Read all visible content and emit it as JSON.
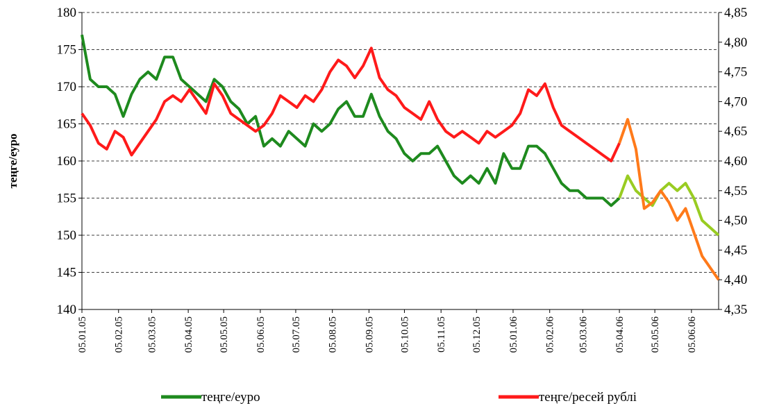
{
  "chart_data": {
    "type": "line",
    "y_label": "теңге/еуро",
    "x": [
      "05.01.05",
      "12.01.05",
      "19.01.05",
      "26.01.05",
      "02.02.05",
      "09.02.05",
      "16.02.05",
      "23.02.05",
      "02.03.05",
      "09.03.05",
      "16.03.05",
      "23.03.05",
      "30.03.05",
      "06.04.05",
      "13.04.05",
      "20.04.05",
      "27.04.05",
      "04.05.05",
      "11.05.05",
      "18.05.05",
      "25.05.05",
      "01.06.05",
      "08.06.05",
      "15.06.05",
      "22.06.05",
      "29.06.05",
      "06.07.05",
      "13.07.05",
      "20.07.05",
      "27.07.05",
      "03.08.05",
      "10.08.05",
      "17.08.05",
      "24.08.05",
      "31.08.05",
      "07.09.05",
      "14.09.05",
      "21.09.05",
      "28.09.05",
      "05.10.05",
      "12.10.05",
      "19.10.05",
      "26.10.05",
      "02.11.05",
      "09.11.05",
      "16.11.05",
      "23.11.05",
      "30.11.05",
      "07.12.05",
      "14.12.05",
      "21.12.05",
      "28.12.05",
      "04.01.06",
      "11.01.06",
      "18.01.06",
      "25.01.06",
      "01.02.06",
      "08.02.06",
      "15.02.06",
      "22.02.06",
      "01.03.06",
      "08.03.06",
      "15.03.06",
      "22.03.06",
      "29.03.06",
      "05.04.06",
      "12.04.06",
      "19.04.06",
      "26.04.06",
      "03.05.06",
      "10.05.06",
      "17.05.06",
      "24.05.06",
      "31.05.06",
      "07.06.06",
      "14.06.06",
      "21.06.06",
      "28.06.06"
    ],
    "xlim": [
      "05.01.05",
      "28.06.06"
    ],
    "xticks": [
      "05.01.05",
      "05.02.05",
      "05.03.05",
      "05.04.05",
      "05.05.05",
      "05.06.05",
      "05.07.05",
      "05.08.05",
      "05.09.05",
      "05.10.05",
      "05.11.05",
      "05.12.05",
      "05.01.06",
      "05.02.06",
      "05.03.06",
      "05.04.06",
      "05.05.06",
      "05.06.06"
    ],
    "ylim": [
      140,
      180
    ],
    "yticks": [
      140,
      145,
      150,
      155,
      160,
      165,
      170,
      175,
      180
    ],
    "y2lim": [
      4.35,
      4.85
    ],
    "y2ticks": [
      {
        "value": 4.35,
        "label": "4,35"
      },
      {
        "value": 4.4,
        "label": "4,40"
      },
      {
        "value": 4.45,
        "label": "4,45"
      },
      {
        "value": 4.5,
        "label": "4,50"
      },
      {
        "value": 4.55,
        "label": "4,55"
      },
      {
        "value": 4.6,
        "label": "4,60"
      },
      {
        "value": 4.65,
        "label": "4,65"
      },
      {
        "value": 4.7,
        "label": "4,70"
      },
      {
        "value": 4.75,
        "label": "4,75"
      },
      {
        "value": 4.8,
        "label": "4,80"
      },
      {
        "value": 4.85,
        "label": "4,85"
      }
    ],
    "grid": true,
    "late_from": "05.04.06",
    "series": [
      {
        "name": "теңге/еуро",
        "color": "#1e8a1e",
        "late_color": "#99cc22",
        "axis": "y",
        "values": [
          177,
          171,
          170,
          170,
          169,
          166,
          169,
          171,
          172,
          171,
          174,
          174,
          171,
          170,
          169,
          168,
          171,
          170,
          168,
          167,
          165,
          166,
          162,
          163,
          162,
          164,
          163,
          162,
          165,
          164,
          165,
          167,
          168,
          166,
          166,
          169,
          166,
          164,
          163,
          161,
          160,
          161,
          161,
          162,
          160,
          158,
          157,
          158,
          157,
          159,
          157,
          161,
          159,
          159,
          162,
          162,
          161,
          159,
          157,
          156,
          156,
          155,
          155,
          155,
          154,
          155,
          158,
          156,
          155,
          154,
          156,
          157,
          156,
          157,
          155,
          152,
          151,
          150
        ]
      },
      {
        "name": "теңге/ресей рублі",
        "color": "#ff1a1a",
        "late_color": "#ff7a1a",
        "axis": "y2",
        "values": [
          4.68,
          4.66,
          4.63,
          4.62,
          4.65,
          4.64,
          4.61,
          4.63,
          4.65,
          4.67,
          4.7,
          4.71,
          4.7,
          4.72,
          4.7,
          4.68,
          4.73,
          4.71,
          4.68,
          4.67,
          4.66,
          4.65,
          4.66,
          4.68,
          4.71,
          4.7,
          4.69,
          4.71,
          4.7,
          4.72,
          4.75,
          4.77,
          4.76,
          4.74,
          4.76,
          4.79,
          4.74,
          4.72,
          4.71,
          4.69,
          4.68,
          4.67,
          4.7,
          4.67,
          4.65,
          4.64,
          4.65,
          4.64,
          4.63,
          4.65,
          4.64,
          4.65,
          4.66,
          4.68,
          4.72,
          4.71,
          4.73,
          4.69,
          4.66,
          4.65,
          4.64,
          4.63,
          4.62,
          4.61,
          4.6,
          4.63,
          4.67,
          4.62,
          4.52,
          4.53,
          4.55,
          4.53,
          4.5,
          4.52,
          4.48,
          4.44,
          4.42,
          4.4
        ]
      }
    ]
  }
}
